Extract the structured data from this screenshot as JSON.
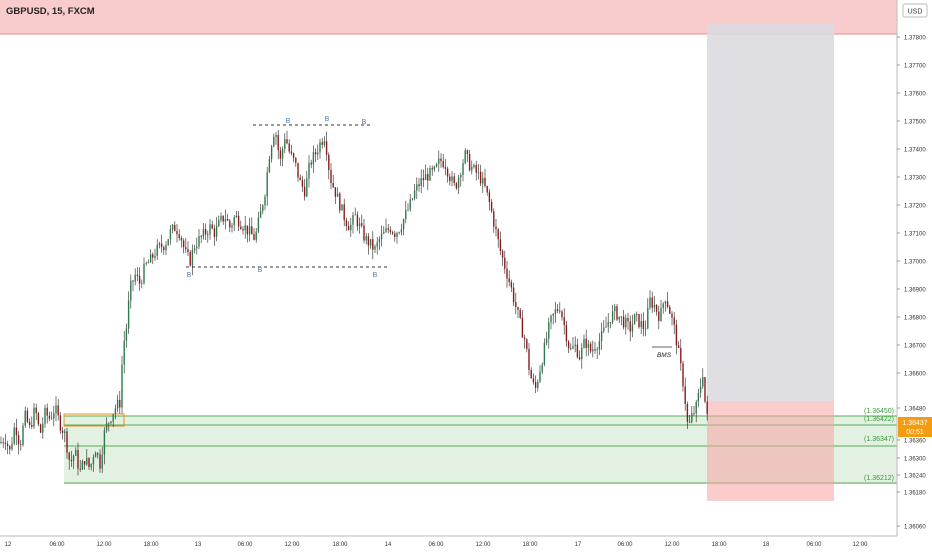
{
  "header": {
    "title": "GBPUSD, 15, FXCM"
  },
  "axis": {
    "currency": "USD"
  },
  "chart_data": {
    "type": "candlestick",
    "symbol": "GBPUSD",
    "timeframe": "15",
    "source": "FXCM",
    "ylim": [
      1.36,
      1.3785
    ],
    "y_ticks": [
      "1.37800",
      "1.37700",
      "1.37600",
      "1.37500",
      "1.37400",
      "1.37300",
      "1.37200",
      "1.37100",
      "1.37000",
      "1.36900",
      "1.36800",
      "1.36700",
      "1.36600",
      "1.36480",
      "1.36360",
      "1.36300",
      "1.36240",
      "1.36180",
      "1.36060"
    ],
    "x_ticks": [
      "12",
      "06:00",
      "12:00",
      "18:00",
      "13",
      "06:00",
      "12:00",
      "18:00",
      "14",
      "06:00",
      "12:00",
      "18:00",
      "17",
      "06:00",
      "12:00",
      "18:00",
      "18",
      "06:00",
      "12:00"
    ],
    "zones": [
      {
        "label": "(1.36450)",
        "y": 1.3645
      },
      {
        "label": "(1.36422)",
        "y": 1.36422
      },
      {
        "label": "(1.36347)",
        "y": 1.36347
      },
      {
        "label": "(1.36212)",
        "y": 1.36212
      }
    ],
    "current_price": "1.36437",
    "countdown": "00:51",
    "annotations": {
      "b_markers": [
        "B",
        "B",
        "B",
        "B",
        "B",
        "B"
      ],
      "bms": "BMS"
    },
    "path": [
      [
        0,
        1.3635
      ],
      [
        5,
        1.3637
      ],
      [
        10,
        1.3632
      ],
      [
        15,
        1.3642
      ],
      [
        20,
        1.3634
      ],
      [
        25,
        1.3645
      ],
      [
        30,
        1.364
      ],
      [
        35,
        1.3648
      ],
      [
        40,
        1.3638
      ],
      [
        45,
        1.3646
      ],
      [
        50,
        1.3644
      ],
      [
        55,
        1.3648
      ],
      [
        60,
        1.3642
      ],
      [
        65,
        1.3638
      ],
      [
        70,
        1.3628
      ],
      [
        75,
        1.3632
      ],
      [
        80,
        1.3625
      ],
      [
        85,
        1.363
      ],
      [
        90,
        1.3626
      ],
      [
        95,
        1.3634
      ],
      [
        100,
        1.3628
      ],
      [
        105,
        1.364
      ],
      [
        110,
        1.3644
      ],
      [
        115,
        1.3648
      ],
      [
        120,
        1.365
      ],
      [
        123,
        1.367
      ],
      [
        126,
        1.3675
      ],
      [
        130,
        1.369
      ],
      [
        135,
        1.3695
      ],
      [
        140,
        1.3692
      ],
      [
        145,
        1.3698
      ],
      [
        150,
        1.37
      ],
      [
        155,
        1.3703
      ],
      [
        160,
        1.3705
      ],
      [
        165,
        1.3706
      ],
      [
        170,
        1.371
      ],
      [
        175,
        1.3712
      ],
      [
        180,
        1.371
      ],
      [
        185,
        1.3703
      ],
      [
        190,
        1.37
      ],
      [
        195,
        1.3706
      ],
      [
        200,
        1.3708
      ],
      [
        205,
        1.371
      ],
      [
        210,
        1.3712
      ],
      [
        215,
        1.371
      ],
      [
        220,
        1.3714
      ],
      [
        225,
        1.3716
      ],
      [
        230,
        1.3712
      ],
      [
        235,
        1.3716
      ],
      [
        240,
        1.3714
      ],
      [
        245,
        1.3712
      ],
      [
        250,
        1.371
      ],
      [
        255,
        1.3708
      ],
      [
        260,
        1.3716
      ],
      [
        265,
        1.3725
      ],
      [
        270,
        1.374
      ],
      [
        275,
        1.3748
      ],
      [
        280,
        1.3735
      ],
      [
        285,
        1.3745
      ],
      [
        290,
        1.3738
      ],
      [
        295,
        1.3735
      ],
      [
        300,
        1.3728
      ],
      [
        305,
        1.3725
      ],
      [
        310,
        1.3735
      ],
      [
        315,
        1.3738
      ],
      [
        320,
        1.3742
      ],
      [
        325,
        1.3745
      ],
      [
        330,
        1.373
      ],
      [
        335,
        1.3725
      ],
      [
        340,
        1.372
      ],
      [
        345,
        1.3715
      ],
      [
        350,
        1.3712
      ],
      [
        355,
        1.3716
      ],
      [
        360,
        1.3712
      ],
      [
        365,
        1.3708
      ],
      [
        370,
        1.3706
      ],
      [
        375,
        1.3704
      ],
      [
        380,
        1.3708
      ],
      [
        385,
        1.371
      ],
      [
        390,
        1.3712
      ],
      [
        395,
        1.371
      ],
      [
        400,
        1.3712
      ],
      [
        405,
        1.3716
      ],
      [
        410,
        1.372
      ],
      [
        415,
        1.3725
      ],
      [
        420,
        1.3728
      ],
      [
        425,
        1.373
      ],
      [
        430,
        1.3731
      ],
      [
        435,
        1.3732
      ],
      [
        440,
        1.3736
      ],
      [
        445,
        1.3735
      ],
      [
        450,
        1.373
      ],
      [
        455,
        1.3726
      ],
      [
        460,
        1.3732
      ],
      [
        465,
        1.3738
      ],
      [
        470,
        1.3734
      ],
      [
        475,
        1.3732
      ],
      [
        480,
        1.373
      ],
      [
        485,
        1.3726
      ],
      [
        490,
        1.372
      ],
      [
        495,
        1.3712
      ],
      [
        500,
        1.3704
      ],
      [
        505,
        1.3698
      ],
      [
        510,
        1.3692
      ],
      [
        515,
        1.3685
      ],
      [
        520,
        1.3678
      ],
      [
        525,
        1.3672
      ],
      [
        530,
        1.366
      ],
      [
        535,
        1.3654
      ],
      [
        540,
        1.3662
      ],
      [
        545,
        1.367
      ],
      [
        550,
        1.3678
      ],
      [
        555,
        1.3682
      ],
      [
        560,
        1.3684
      ],
      [
        565,
        1.3676
      ],
      [
        570,
        1.3668
      ],
      [
        575,
        1.367
      ],
      [
        580,
        1.3666
      ],
      [
        585,
        1.3672
      ],
      [
        590,
        1.3668
      ],
      [
        595,
        1.367
      ],
      [
        600,
        1.3672
      ],
      [
        605,
        1.3676
      ],
      [
        610,
        1.368
      ],
      [
        615,
        1.3682
      ],
      [
        620,
        1.368
      ],
      [
        625,
        1.3678
      ],
      [
        630,
        1.3676
      ],
      [
        635,
        1.368
      ],
      [
        640,
        1.3678
      ],
      [
        645,
        1.3676
      ],
      [
        650,
        1.3686
      ],
      [
        655,
        1.3684
      ],
      [
        660,
        1.368
      ],
      [
        665,
        1.3688
      ],
      [
        670,
        1.3682
      ],
      [
        675,
        1.3675
      ],
      [
        680,
        1.3664
      ],
      [
        684,
        1.3655
      ],
      [
        688,
        1.364
      ],
      [
        692,
        1.3645
      ],
      [
        696,
        1.3648
      ],
      [
        700,
        1.3655
      ],
      [
        703,
        1.3661
      ],
      [
        706,
        1.3645
      ],
      [
        708,
        1.36437
      ]
    ]
  }
}
